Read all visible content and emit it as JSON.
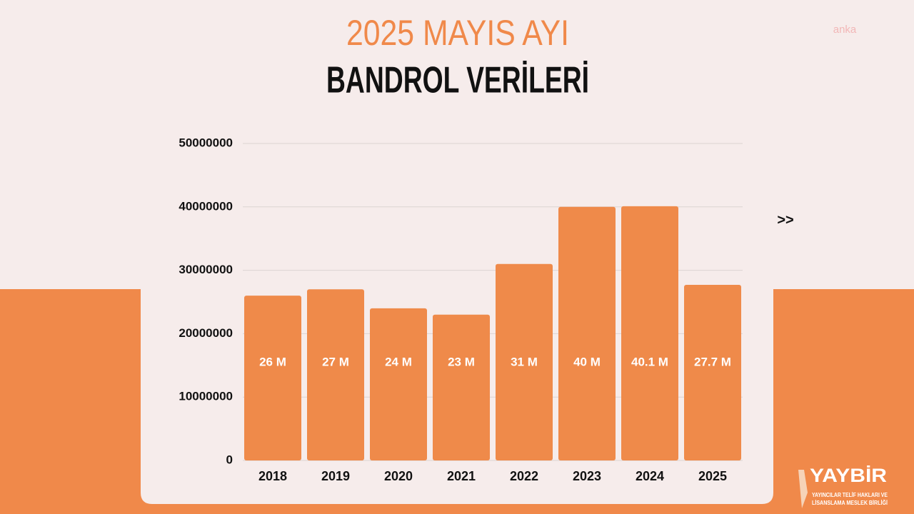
{
  "chart_data": {
    "type": "bar",
    "title": "2025 MAYIS AYI",
    "subtitle": "BANDROL VERİLERİ",
    "categories": [
      "2018",
      "2019",
      "2020",
      "2021",
      "2022",
      "2023",
      "2024",
      "2025"
    ],
    "values": [
      26000000,
      27000000,
      24000000,
      23000000,
      31000000,
      40000000,
      40100000,
      27700000
    ],
    "value_labels": [
      "26 M",
      "27 M",
      "24 M",
      "23 M",
      "31 M",
      "40 M",
      "40.1 M",
      "27.7 M"
    ],
    "color": "#ef8a4a",
    "ylim": [
      0,
      50000000
    ],
    "yticks": [
      0,
      10000000,
      20000000,
      30000000,
      40000000,
      50000000
    ],
    "grid": true
  },
  "watermark": "anka",
  "nav": ">>",
  "logo": {
    "name": "YAYBİR",
    "line1": "YAYINCILAR TELİF HAKLARI VE",
    "line2": "LİSANSLAMA MESLEK BİRLİĞİ"
  }
}
